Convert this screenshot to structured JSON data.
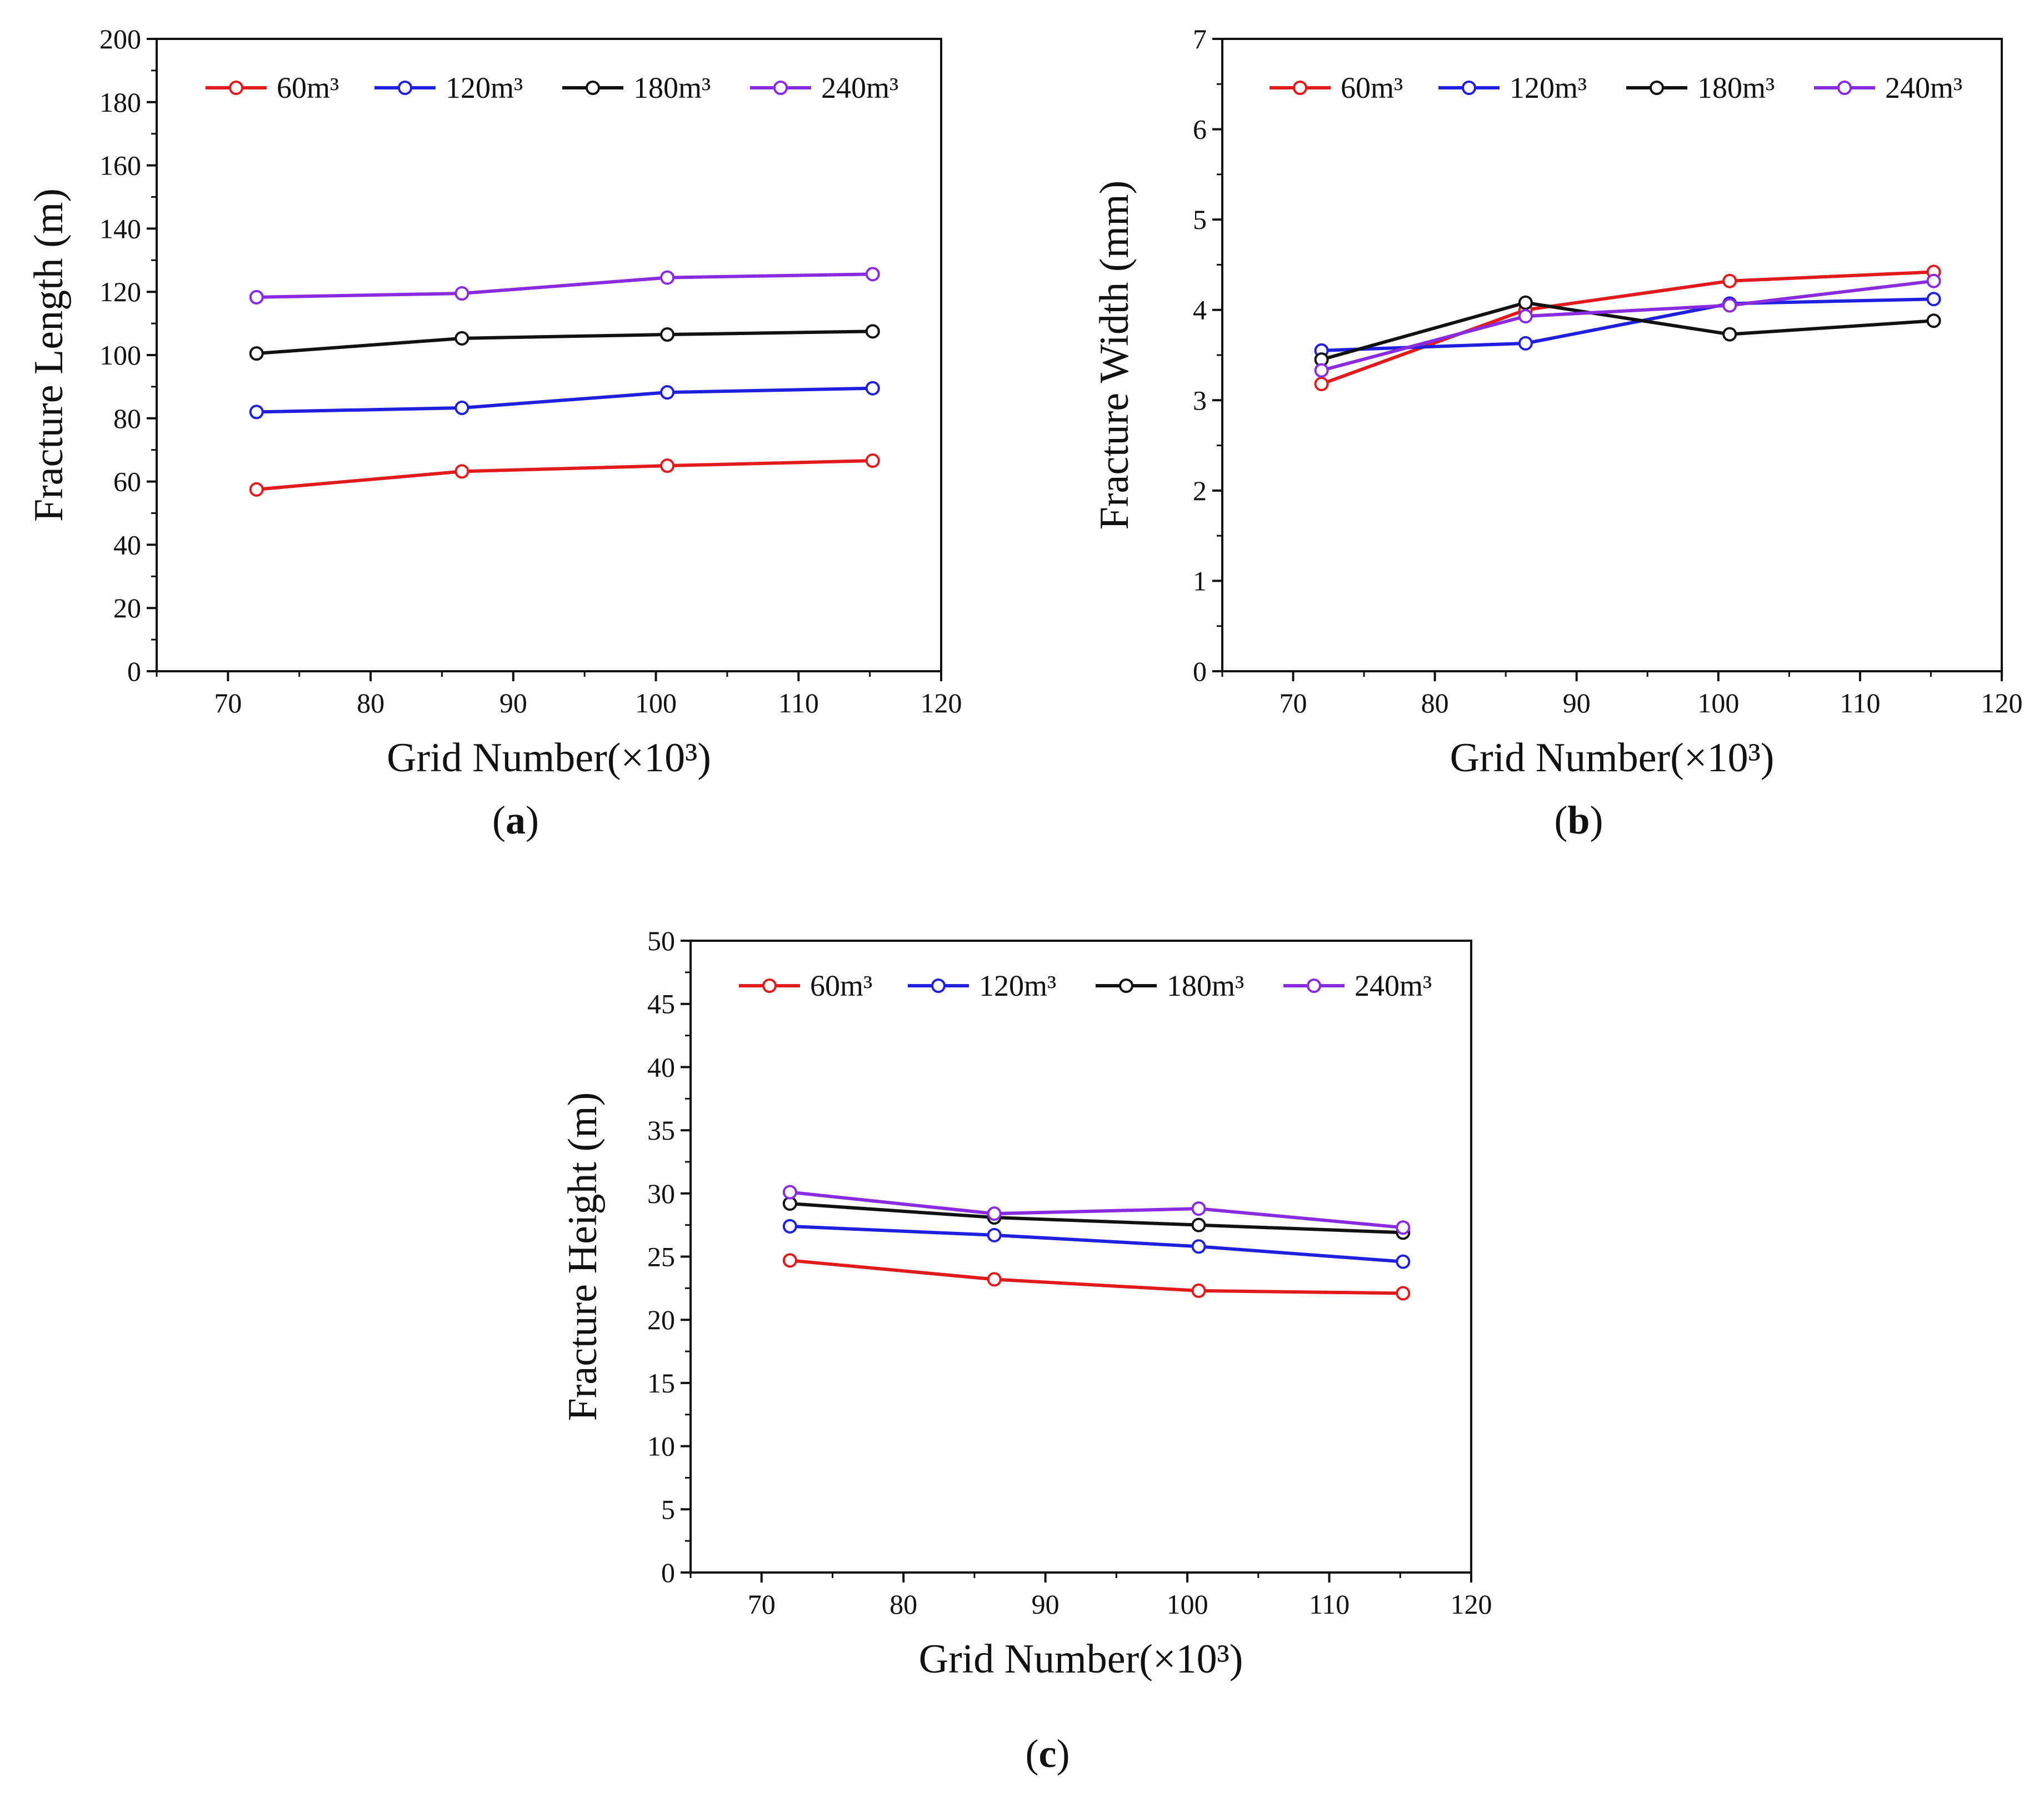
{
  "figure": {
    "series_names": [
      "60m³",
      "120m³",
      "180m³",
      "240m³"
    ],
    "series_colors": [
      "#e31a1c",
      "#1f1fe0",
      "#111111",
      "#8a2be2"
    ]
  },
  "chart_data": [
    {
      "type": "line",
      "panel": "a",
      "panel_label": "a",
      "xlabel": "Grid Number(×10³)",
      "ylabel": "Fracture Length (m)",
      "xlim": [
        65,
        120
      ],
      "ylim": [
        0,
        200
      ],
      "xticks": [
        70,
        80,
        90,
        100,
        110,
        120
      ],
      "yticks": [
        0,
        20,
        40,
        60,
        80,
        100,
        120,
        140,
        160,
        180,
        200
      ],
      "x": [
        72,
        86.4,
        100.8,
        115.2
      ],
      "series": [
        {
          "name": "60m³",
          "color": "#e31a1c",
          "values": [
            57.5,
            63.2,
            65.0,
            66.6
          ]
        },
        {
          "name": "120m³",
          "color": "#1f1fe0",
          "values": [
            82.0,
            83.3,
            88.2,
            89.5
          ]
        },
        {
          "name": "180m³",
          "color": "#111111",
          "values": [
            100.5,
            105.3,
            106.5,
            107.5
          ]
        },
        {
          "name": "240m³",
          "color": "#8a2be2",
          "values": [
            118.3,
            119.5,
            124.5,
            125.6
          ]
        }
      ],
      "legend_position": "top"
    },
    {
      "type": "line",
      "panel": "b",
      "panel_label": "b",
      "xlabel": "Grid Number(×10³)",
      "ylabel": "Fracture Width (mm)",
      "xlim": [
        65,
        120
      ],
      "ylim": [
        0,
        7
      ],
      "xticks": [
        70,
        80,
        90,
        100,
        110,
        120
      ],
      "yticks": [
        0,
        1,
        2,
        3,
        4,
        5,
        6,
        7
      ],
      "x": [
        72,
        86.4,
        100.8,
        115.2
      ],
      "series": [
        {
          "name": "60m³",
          "color": "#e31a1c",
          "values": [
            3.18,
            4.0,
            4.32,
            4.42
          ]
        },
        {
          "name": "120m³",
          "color": "#1f1fe0",
          "values": [
            3.55,
            3.63,
            4.07,
            4.12
          ]
        },
        {
          "name": "180m³",
          "color": "#111111",
          "values": [
            3.45,
            4.08,
            3.73,
            3.88
          ]
        },
        {
          "name": "240m³",
          "color": "#8a2be2",
          "values": [
            3.33,
            3.93,
            4.05,
            4.32
          ]
        }
      ],
      "legend_position": "top"
    },
    {
      "type": "line",
      "panel": "c",
      "panel_label": "c",
      "xlabel": "Grid Number(×10³)",
      "ylabel": "Fracture Height (m)",
      "xlim": [
        65,
        120
      ],
      "ylim": [
        0,
        50
      ],
      "xticks": [
        70,
        80,
        90,
        100,
        110,
        120
      ],
      "yticks": [
        0,
        5,
        10,
        15,
        20,
        25,
        30,
        35,
        40,
        45,
        50
      ],
      "x": [
        72,
        86.4,
        100.8,
        115.2
      ],
      "series": [
        {
          "name": "60m³",
          "color": "#e31a1c",
          "values": [
            24.7,
            23.2,
            22.3,
            22.1
          ]
        },
        {
          "name": "120m³",
          "color": "#1f1fe0",
          "values": [
            27.4,
            26.7,
            25.8,
            24.6
          ]
        },
        {
          "name": "180m³",
          "color": "#111111",
          "values": [
            29.2,
            28.1,
            27.5,
            26.9
          ]
        },
        {
          "name": "240m³",
          "color": "#8a2be2",
          "values": [
            30.1,
            28.4,
            28.8,
            27.3
          ]
        }
      ],
      "legend_position": "top"
    }
  ]
}
